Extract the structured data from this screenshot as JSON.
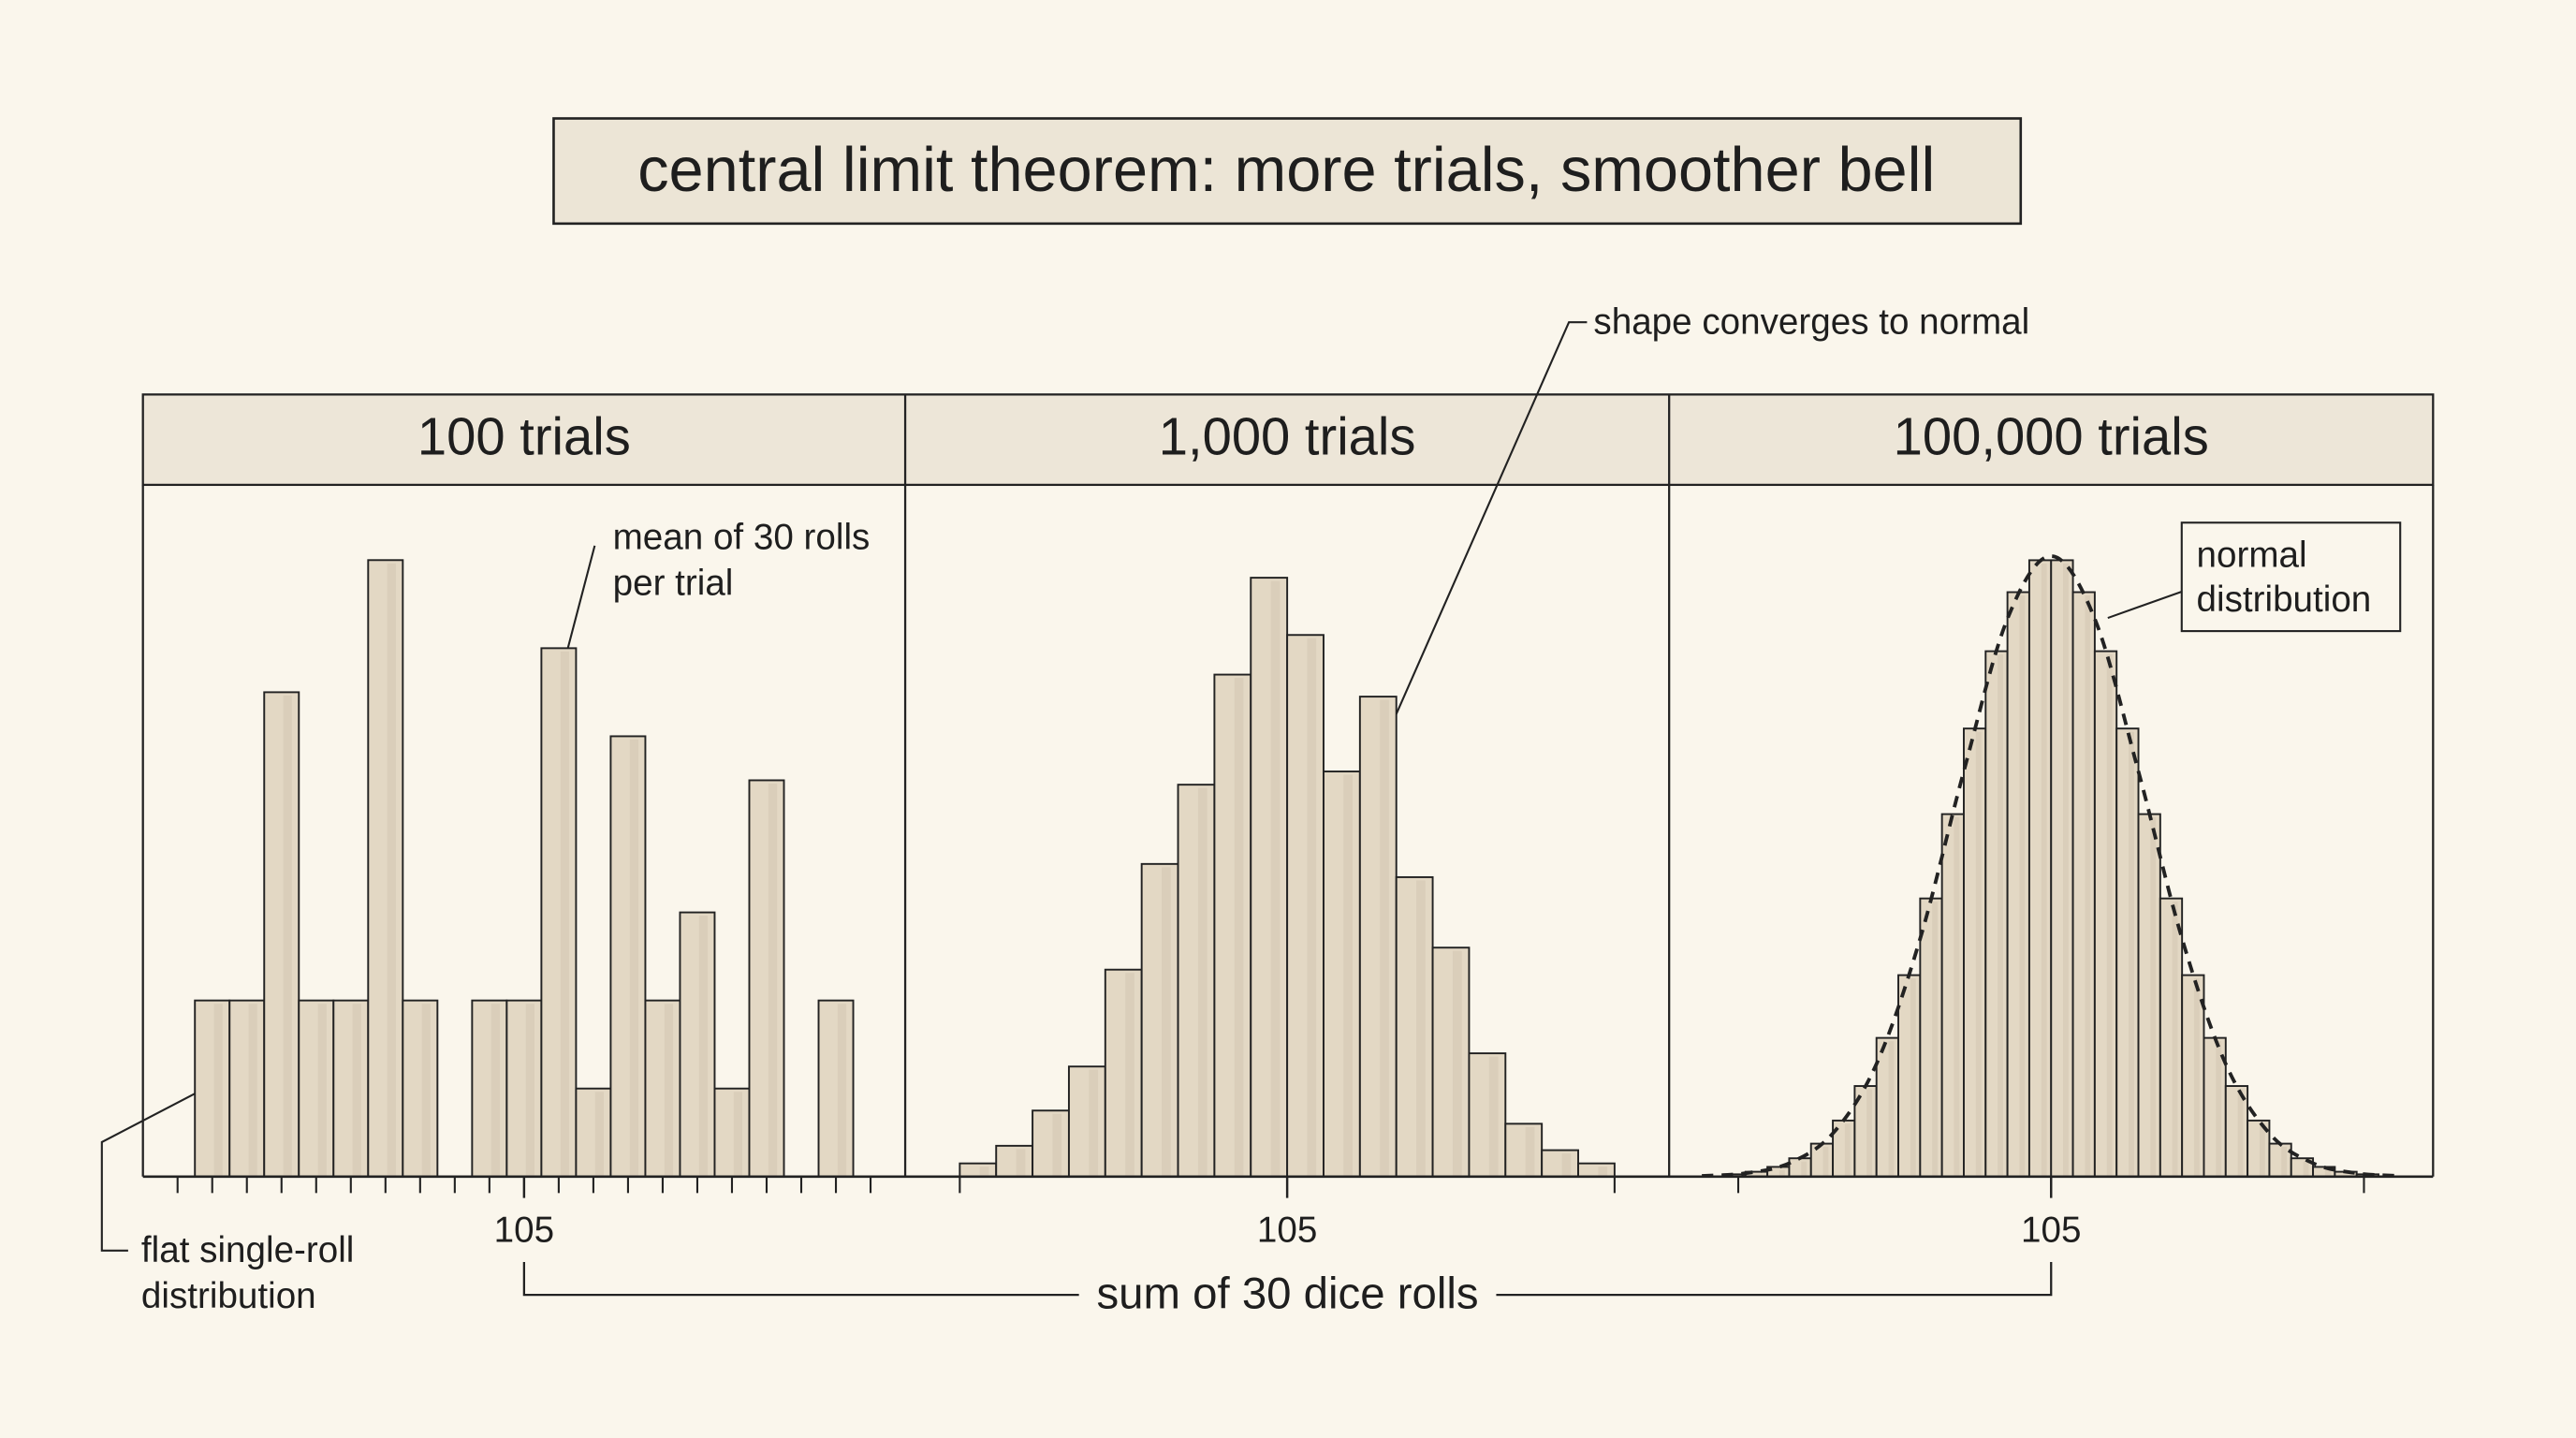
{
  "title": "central limit theorem: more trials, smoother bell",
  "x_label": "sum of 30 dice rolls",
  "chart_data": [
    {
      "type": "histogram",
      "title": "100 trials",
      "color": "#e3d8c4",
      "bins": [
        57.5,
        62.5,
        67.5,
        72.5,
        77.5,
        82.5,
        87.5,
        92.5,
        97.5,
        102.5,
        107.5,
        112.5,
        117.5,
        122.5,
        127.5,
        132.5,
        137.5,
        142.5,
        147.5,
        152.5
      ],
      "values": [
        4,
        4,
        11,
        4,
        4,
        14,
        4,
        0,
        4,
        4,
        12,
        2,
        10,
        4,
        6,
        2,
        9,
        0,
        4
      ],
      "xlim": [
        50,
        160
      ],
      "ylim": [
        0,
        15
      ],
      "xticks": [
        105
      ],
      "xminor": [
        55,
        60,
        65,
        70,
        75,
        80,
        85,
        90,
        95,
        100,
        110,
        115,
        120,
        125,
        130,
        135,
        140,
        145,
        150,
        155
      ],
      "annotations": [
        [
          "mean of 30 rolls",
          "per trial"
        ],
        [
          "flat single-roll",
          "distribution"
        ]
      ]
    },
    {
      "type": "histogram",
      "title": "1,000 trials",
      "color": "#e3d8c4",
      "bins": [
        60,
        65,
        70,
        75,
        80,
        85,
        90,
        95,
        100,
        105,
        110,
        115,
        120,
        125,
        130,
        135,
        140,
        145,
        150
      ],
      "values": [
        3,
        7,
        15,
        25,
        47,
        71,
        89,
        114,
        136,
        123,
        92,
        109,
        68,
        52,
        28,
        12,
        6,
        3
      ],
      "xlim": [
        52.5,
        157.5
      ],
      "ylim": [
        0,
        150
      ],
      "xticks": [
        105
      ],
      "xminor": [
        60,
        150
      ],
      "annotations": [
        [
          "shape converges to normal"
        ]
      ]
    },
    {
      "type": "histogram",
      "title": "100,000 trials",
      "color": "#e3d8c4",
      "bins": [
        60,
        63,
        66,
        69,
        72,
        75,
        78,
        81,
        84,
        87,
        90,
        93,
        96,
        99,
        102,
        105,
        108,
        111,
        114,
        117,
        120,
        123,
        126,
        129,
        132,
        135,
        138,
        141,
        144,
        147,
        150
      ],
      "values": [
        34,
        72,
        144,
        272,
        489,
        832,
        1344,
        2058,
        2989,
        4127,
        5378,
        6648,
        7795,
        8671,
        9145,
        9145,
        8671,
        7795,
        6648,
        5378,
        4127,
        2989,
        2058,
        1344,
        832,
        489,
        272,
        144,
        72,
        34
      ],
      "xlim": [
        52.5,
        157.5
      ],
      "ylim": [
        0,
        9800
      ],
      "xticks": [
        105
      ],
      "xminor": [
        62,
        148
      ],
      "curve": {
        "x": [
          57,
          63,
          69,
          75,
          81,
          87,
          93,
          99,
          105,
          111,
          117,
          123,
          129,
          135,
          141,
          147,
          153
        ],
        "values": [
          10,
          50,
          199,
          641,
          1672,
          3530,
          6013,
          8276,
          9206,
          8276,
          6013,
          3530,
          1672,
          641,
          199,
          50,
          10
        ],
        "color": "#222222",
        "dashed": true
      },
      "annotations": [
        [
          "normal",
          "distribution"
        ]
      ]
    }
  ]
}
